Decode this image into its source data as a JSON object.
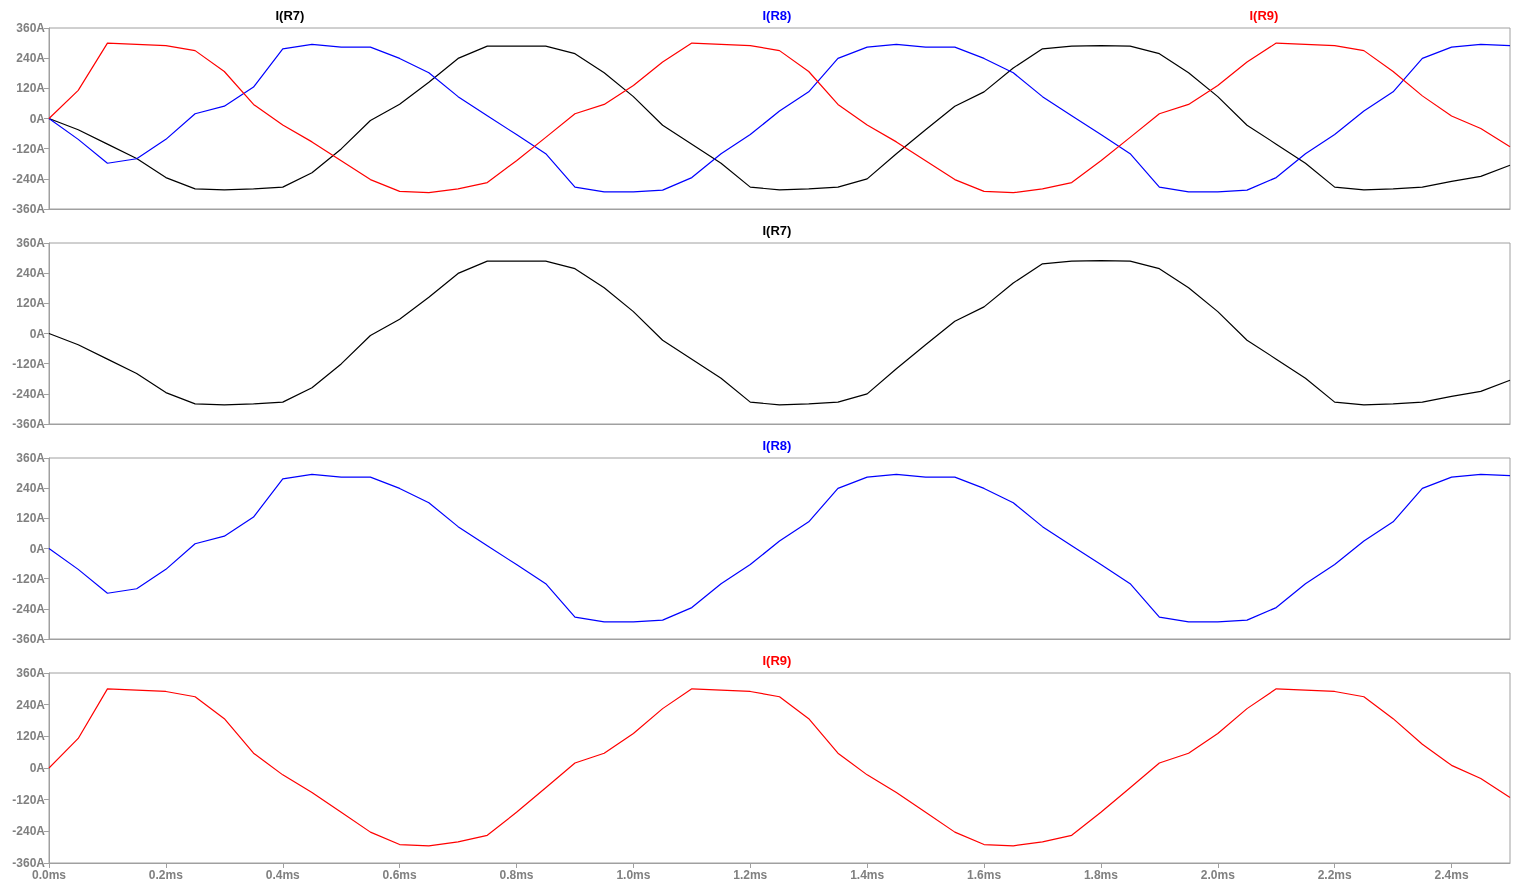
{
  "chart_data": [
    {
      "type": "line",
      "x": [
        0,
        0.05,
        0.1,
        0.15,
        0.2,
        0.25,
        0.3,
        0.35,
        0.4,
        0.45,
        0.5,
        0.55,
        0.6,
        0.65,
        0.7,
        0.75,
        0.8,
        0.85,
        0.9,
        0.95,
        1.0,
        1.05,
        1.1,
        1.15,
        1.2,
        1.25,
        1.3,
        1.35,
        1.4,
        1.45,
        1.5,
        1.55,
        1.6,
        1.65,
        1.7,
        1.75,
        1.8,
        1.85,
        1.9,
        1.95,
        2.0,
        2.05,
        2.1,
        2.15,
        2.2,
        2.25,
        2.3,
        2.35,
        2.4,
        2.45,
        2.5
      ],
      "xlim": [
        0,
        2.5
      ],
      "ylim": [
        -360,
        360
      ],
      "yticks": [
        {
          "value": -360,
          "label": "-360A"
        },
        {
          "value": -240,
          "label": "-240A"
        },
        {
          "value": -120,
          "label": "-120A"
        },
        {
          "value": 0,
          "label": "0A"
        },
        {
          "value": 120,
          "label": "120A"
        },
        {
          "value": 240,
          "label": "240A"
        },
        {
          "value": 360,
          "label": "360A"
        }
      ],
      "tick_labels": "y",
      "legend": "top",
      "grid": false,
      "series": [
        {
          "name": "I(R7)",
          "color": "#000000",
          "values": [
            0,
            -45,
            -102,
            -159,
            -235,
            -280,
            -284,
            -280,
            -273,
            -216,
            -121,
            -8,
            57,
            144,
            239,
            288,
            288,
            288,
            258,
            182,
            87,
            -27,
            -102,
            -178,
            -273,
            -284,
            -280,
            -273,
            -240,
            -140,
            -45,
            49,
            106,
            201,
            277,
            288,
            290,
            288,
            258,
            182,
            87,
            -27,
            -102,
            -178,
            -273,
            -284,
            -280,
            -273,
            -250,
            -230,
            -186
          ]
        },
        {
          "name": "I(R8)",
          "color": "#0000ff",
          "values": [
            0,
            -83,
            -178,
            -160,
            -83,
            19,
            49,
            125,
            277,
            295,
            284,
            284,
            239,
            182,
            87,
            11,
            -64,
            -140,
            -273,
            -292,
            -292,
            -285,
            -235,
            -140,
            -64,
            30,
            106,
            239,
            284,
            295,
            284,
            284,
            239,
            182,
            87,
            11,
            -64,
            -140,
            -273,
            -292,
            -292,
            -285,
            -235,
            -140,
            -64,
            30,
            106,
            239,
            284,
            295,
            290
          ]
        },
        {
          "name": "I(R9)",
          "color": "#ff0000",
          "values": [
            0,
            112,
            300,
            295,
            290,
            270,
            187,
            56,
            -26,
            -93,
            -168,
            -243,
            -290,
            -295,
            -280,
            -255,
            -168,
            -75,
            19,
            56,
            131,
            225,
            300,
            295,
            290,
            270,
            187,
            56,
            -26,
            -93,
            -168,
            -243,
            -290,
            -295,
            -280,
            -255,
            -168,
            -75,
            19,
            56,
            131,
            225,
            300,
            295,
            290,
            270,
            187,
            90,
            10,
            -40,
            -112
          ]
        }
      ]
    },
    {
      "type": "line",
      "x": [
        0,
        0.05,
        0.1,
        0.15,
        0.2,
        0.25,
        0.3,
        0.35,
        0.4,
        0.45,
        0.5,
        0.55,
        0.6,
        0.65,
        0.7,
        0.75,
        0.8,
        0.85,
        0.9,
        0.95,
        1.0,
        1.05,
        1.1,
        1.15,
        1.2,
        1.25,
        1.3,
        1.35,
        1.4,
        1.45,
        1.5,
        1.55,
        1.6,
        1.65,
        1.7,
        1.75,
        1.8,
        1.85,
        1.9,
        1.95,
        2.0,
        2.05,
        2.1,
        2.15,
        2.2,
        2.25,
        2.3,
        2.35,
        2.4,
        2.45,
        2.5
      ],
      "xlim": [
        0,
        2.5
      ],
      "ylim": [
        -360,
        360
      ],
      "yticks": [
        {
          "value": -360,
          "label": "-360A"
        },
        {
          "value": -240,
          "label": "-240A"
        },
        {
          "value": -120,
          "label": "-120A"
        },
        {
          "value": 0,
          "label": "0A"
        },
        {
          "value": 120,
          "label": "120A"
        },
        {
          "value": 240,
          "label": "240A"
        },
        {
          "value": 360,
          "label": "360A"
        }
      ],
      "tick_labels": "y",
      "legend": "top",
      "grid": false,
      "series": [
        {
          "name": "I(R7)",
          "color": "#000000",
          "values": [
            0,
            -45,
            -102,
            -159,
            -235,
            -280,
            -284,
            -280,
            -273,
            -216,
            -121,
            -8,
            57,
            144,
            239,
            288,
            288,
            288,
            258,
            182,
            87,
            -27,
            -102,
            -178,
            -273,
            -284,
            -280,
            -273,
            -240,
            -140,
            -45,
            49,
            106,
            201,
            277,
            288,
            290,
            288,
            258,
            182,
            87,
            -27,
            -102,
            -178,
            -273,
            -284,
            -280,
            -273,
            -250,
            -230,
            -186
          ]
        }
      ]
    },
    {
      "type": "line",
      "x": [
        0,
        0.05,
        0.1,
        0.15,
        0.2,
        0.25,
        0.3,
        0.35,
        0.4,
        0.45,
        0.5,
        0.55,
        0.6,
        0.65,
        0.7,
        0.75,
        0.8,
        0.85,
        0.9,
        0.95,
        1.0,
        1.05,
        1.1,
        1.15,
        1.2,
        1.25,
        1.3,
        1.35,
        1.4,
        1.45,
        1.5,
        1.55,
        1.6,
        1.65,
        1.7,
        1.75,
        1.8,
        1.85,
        1.9,
        1.95,
        2.0,
        2.05,
        2.1,
        2.15,
        2.2,
        2.25,
        2.3,
        2.35,
        2.4,
        2.45,
        2.5
      ],
      "xlim": [
        0,
        2.5
      ],
      "ylim": [
        -360,
        360
      ],
      "yticks": [
        {
          "value": -360,
          "label": "-360A"
        },
        {
          "value": -240,
          "label": "-240A"
        },
        {
          "value": -120,
          "label": "-120A"
        },
        {
          "value": 0,
          "label": "0A"
        },
        {
          "value": 120,
          "label": "120A"
        },
        {
          "value": 240,
          "label": "240A"
        },
        {
          "value": 360,
          "label": "360A"
        }
      ],
      "tick_labels": "y",
      "legend": "top",
      "grid": false,
      "series": [
        {
          "name": "I(R8)",
          "color": "#0000ff",
          "values": [
            0,
            -83,
            -178,
            -160,
            -83,
            19,
            49,
            125,
            277,
            295,
            284,
            284,
            239,
            182,
            87,
            11,
            -64,
            -140,
            -273,
            -292,
            -292,
            -285,
            -235,
            -140,
            -64,
            30,
            106,
            239,
            284,
            295,
            284,
            284,
            239,
            182,
            87,
            11,
            -64,
            -140,
            -273,
            -292,
            -292,
            -285,
            -235,
            -140,
            -64,
            30,
            106,
            239,
            284,
            295,
            290
          ]
        }
      ]
    },
    {
      "type": "line",
      "x": [
        0,
        0.05,
        0.1,
        0.15,
        0.2,
        0.25,
        0.3,
        0.35,
        0.4,
        0.45,
        0.5,
        0.55,
        0.6,
        0.65,
        0.7,
        0.75,
        0.8,
        0.85,
        0.9,
        0.95,
        1.0,
        1.05,
        1.1,
        1.15,
        1.2,
        1.25,
        1.3,
        1.35,
        1.4,
        1.45,
        1.5,
        1.55,
        1.6,
        1.65,
        1.7,
        1.75,
        1.8,
        1.85,
        1.9,
        1.95,
        2.0,
        2.05,
        2.1,
        2.15,
        2.2,
        2.25,
        2.3,
        2.35,
        2.4,
        2.45,
        2.5
      ],
      "xlim": [
        0,
        2.5
      ],
      "xticks": [
        {
          "value": 0,
          "label": "0.0ms"
        },
        {
          "value": 0.2,
          "label": "0.2ms"
        },
        {
          "value": 0.4,
          "label": "0.4ms"
        },
        {
          "value": 0.6,
          "label": "0.6ms"
        },
        {
          "value": 0.8,
          "label": "0.8ms"
        },
        {
          "value": 1.0,
          "label": "1.0ms"
        },
        {
          "value": 1.2,
          "label": "1.2ms"
        },
        {
          "value": 1.4,
          "label": "1.4ms"
        },
        {
          "value": 1.6,
          "label": "1.6ms"
        },
        {
          "value": 1.8,
          "label": "1.8ms"
        },
        {
          "value": 2.0,
          "label": "2.0ms"
        },
        {
          "value": 2.2,
          "label": "2.2ms"
        },
        {
          "value": 2.4,
          "label": "2.4ms"
        }
      ],
      "ylim": [
        -360,
        360
      ],
      "yticks": [
        {
          "value": -360,
          "label": "-360A"
        },
        {
          "value": -240,
          "label": "-240A"
        },
        {
          "value": -120,
          "label": "-120A"
        },
        {
          "value": 0,
          "label": "0A"
        },
        {
          "value": 120,
          "label": "120A"
        },
        {
          "value": 240,
          "label": "240A"
        },
        {
          "value": 360,
          "label": "360A"
        }
      ],
      "legend": "top",
      "grid": false,
      "series": [
        {
          "name": "I(R9)",
          "color": "#ff0000",
          "values": [
            0,
            112,
            300,
            295,
            290,
            270,
            187,
            56,
            -26,
            -93,
            -168,
            -243,
            -290,
            -295,
            -280,
            -255,
            -168,
            -75,
            19,
            56,
            131,
            225,
            300,
            295,
            290,
            270,
            187,
            56,
            -26,
            -93,
            -168,
            -243,
            -290,
            -295,
            -280,
            -255,
            -168,
            -75,
            19,
            56,
            131,
            225,
            300,
            295,
            290,
            270,
            187,
            90,
            10,
            -40,
            -112
          ]
        }
      ]
    }
  ]
}
